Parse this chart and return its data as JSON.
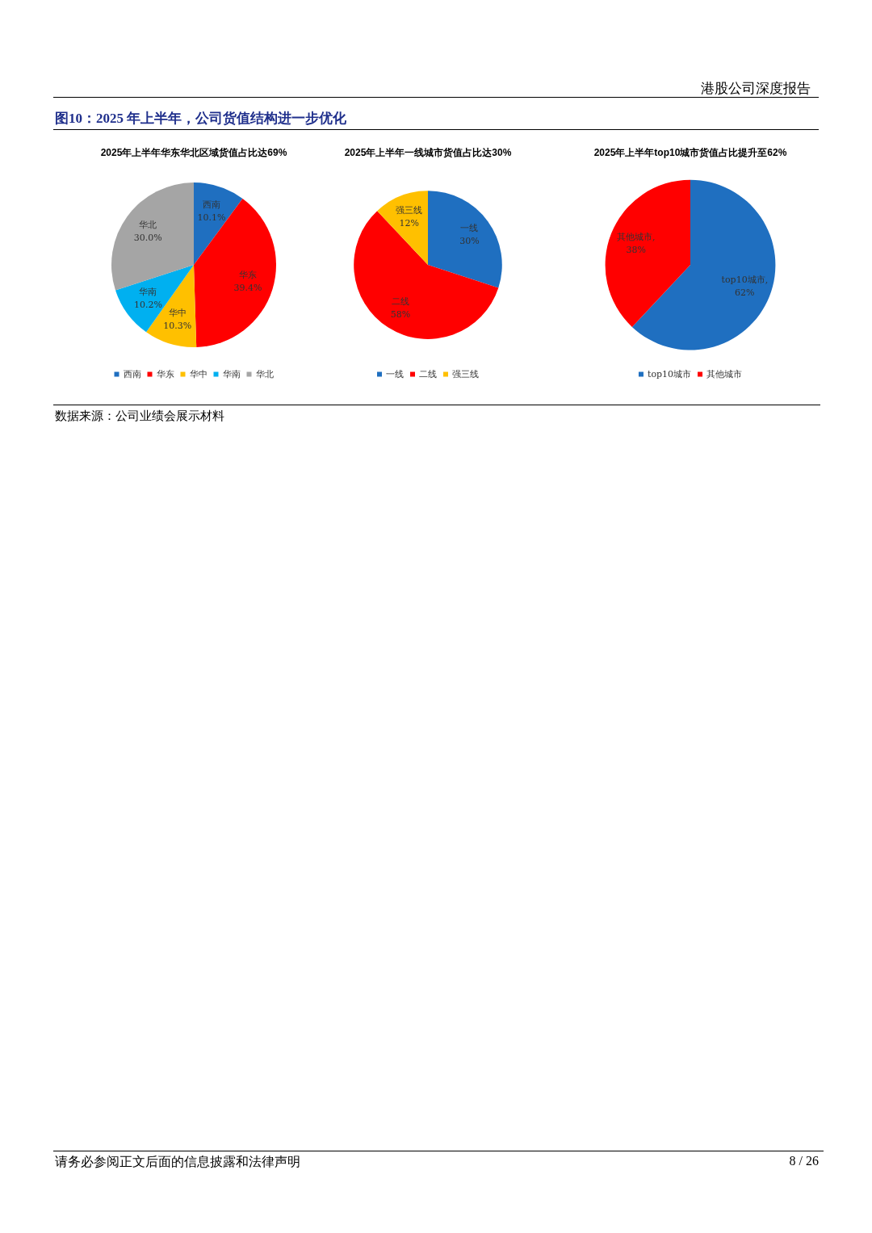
{
  "chart_data": [
    {
      "type": "pie",
      "title": "2025年上半年华东华北区域货值占比达69%",
      "categories": [
        "西南",
        "华东",
        "华中",
        "华南",
        "华北"
      ],
      "values": [
        10.1,
        39.4,
        10.3,
        10.2,
        30.0
      ],
      "colors": [
        "#1f6fc0",
        "#ff0000",
        "#ffc000",
        "#00b0f0",
        "#a5a5a5"
      ],
      "value_labels": [
        "西南\n10.1%",
        "华东\n39.4%",
        "华中\n10.3%",
        "华南\n10.2%",
        "华北\n30.0%"
      ],
      "legend": "bottom",
      "annotations": [
        "港股公司深度报告",
        "图10：2025 年上半年，公司货值结构进一步优化",
        "数据来源：公司业绩会展示材料",
        "请务必参阅正文后面的信息披露和法律声明",
        "8 / 26"
      ]
    },
    {
      "type": "pie",
      "title": "2025年上半年一线城市货值占比达30%",
      "categories": [
        "一线",
        "二线",
        "强三线"
      ],
      "values": [
        30,
        58,
        12
      ],
      "colors": [
        "#1f6fc0",
        "#ff0000",
        "#ffc000"
      ],
      "value_labels": [
        "一线\n30%",
        "二线\n58%",
        "强三线\n12%"
      ],
      "legend": "bottom"
    },
    {
      "type": "pie",
      "title": "2025年上半年top10城市货值占比提升至62%",
      "categories": [
        "top10城市",
        "其他城市"
      ],
      "values": [
        62,
        38
      ],
      "colors": [
        "#1f6fc0",
        "#ff0000"
      ],
      "value_labels": [
        "top10城市,\n62%",
        "其他城市,\n38%"
      ],
      "legend": "bottom"
    }
  ]
}
